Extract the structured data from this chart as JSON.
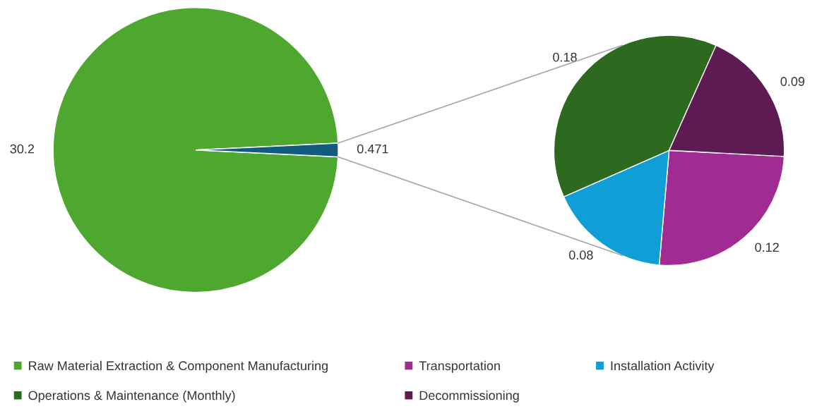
{
  "chart_data": [
    {
      "type": "pie",
      "categories": [
        "Raw Material Extraction & Component Manufacturing",
        null
      ],
      "values": [
        30.2,
        0.471
      ],
      "colors": [
        "#4ea72e",
        "#135b7e"
      ],
      "data_labels": true,
      "legend": "bottom"
    },
    {
      "type": "pie",
      "categories": [
        "Transportation",
        "Installation Activity",
        "Operations & Maintenance (Monthly)",
        "Decommissioning"
      ],
      "values": [
        0.12,
        0.08,
        0.18,
        0.09
      ],
      "colors": [
        "#a02b93",
        "#0f9ed5",
        "#2d6a1f",
        "#5d1a53"
      ],
      "data_labels": true,
      "legend": "bottom"
    }
  ]
}
